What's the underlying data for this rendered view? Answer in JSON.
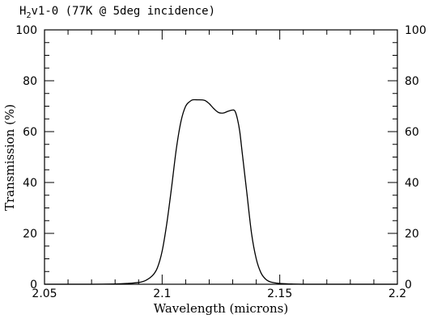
{
  "chart_data": {
    "type": "line",
    "title_prefix": "H",
    "title_subscript": "2",
    "title_rest": "v1-0 (77K @ 5deg incidence)",
    "xlabel": "Wavelength (microns)",
    "ylabel": "Transmission (%)",
    "xlim": [
      2.05,
      2.2
    ],
    "ylim": [
      0,
      100
    ],
    "x_ticks": [
      "2.05",
      "2.1",
      "2.15",
      "2.2"
    ],
    "y_ticks": [
      "0",
      "20",
      "40",
      "60",
      "80",
      "100"
    ],
    "grid": false,
    "series": [
      {
        "x": [
          2.05,
          2.07,
          2.08,
          2.085,
          2.09,
          2.093,
          2.096,
          2.098,
          2.1,
          2.102,
          2.104,
          2.106,
          2.108,
          2.11,
          2.112,
          2.113,
          2.115,
          2.118,
          2.12,
          2.122,
          2.124,
          2.126,
          2.128,
          2.13,
          2.131,
          2.132,
          2.133,
          2.134,
          2.136,
          2.138,
          2.14,
          2.142,
          2.144,
          2.146,
          2.15,
          2.155,
          2.16,
          2.17,
          2.2
        ],
        "y": [
          0,
          0,
          0.1,
          0.3,
          0.7,
          1.5,
          3.5,
          6.5,
          13,
          24,
          38,
          53,
          64,
          70,
          72,
          72.5,
          72.5,
          72.3,
          71,
          69,
          67.5,
          67.3,
          68,
          68.5,
          68,
          65,
          60,
          52,
          36,
          20,
          10,
          4.5,
          2,
          0.9,
          0.3,
          0.1,
          0,
          0,
          0
        ]
      }
    ]
  }
}
